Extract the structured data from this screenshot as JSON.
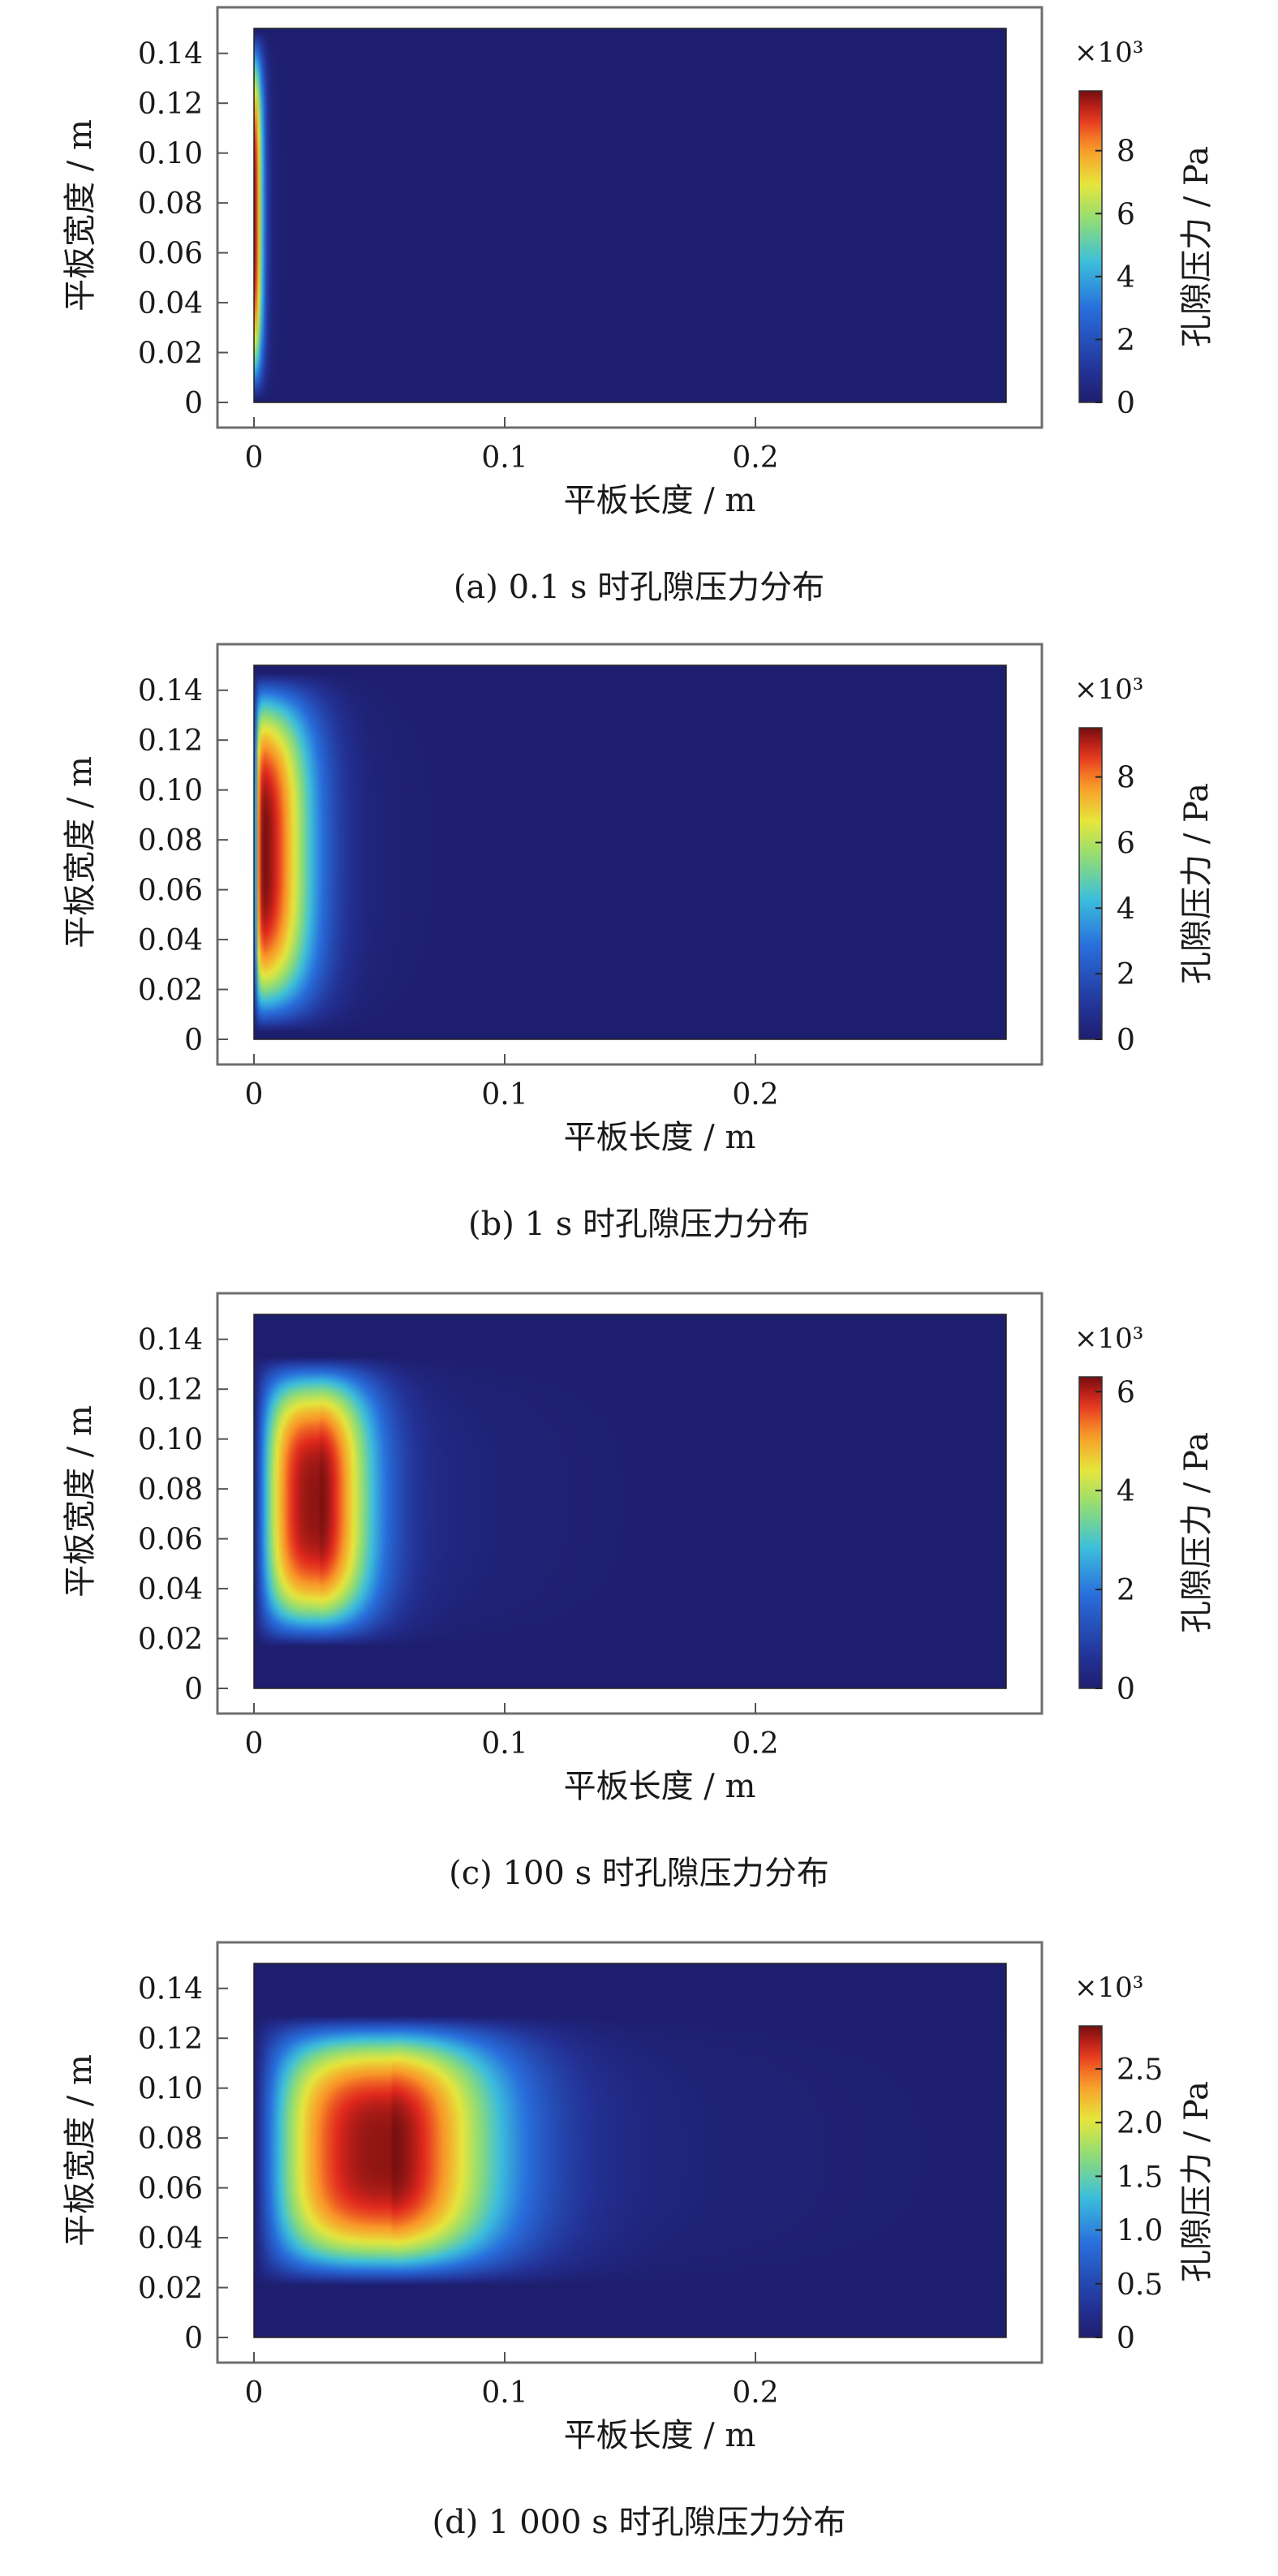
{
  "chart_data": [
    {
      "type": "heatmap",
      "xlabel": "平板长度 / m",
      "ylabel": "平板宽度 / m",
      "colorbar_label": "孔隙压力 / Pa",
      "colorbar_multiplier": "×10³",
      "xlim": [
        0,
        0.3
      ],
      "ylim": [
        0,
        0.15
      ],
      "x_ticks": [
        0,
        0.1,
        0.2
      ],
      "x_tick_labels": [
        "0",
        "0.1",
        "0.2"
      ],
      "y_ticks": [
        0,
        0.02,
        0.04,
        0.06,
        0.08,
        0.1,
        0.12,
        0.14
      ],
      "y_tick_labels": [
        "0",
        "0.02",
        "0.04",
        "0.06",
        "0.08",
        "0.10",
        "0.12",
        "0.14"
      ],
      "colorbar_range": [
        0,
        9.9
      ],
      "colorbar_ticks": [
        0,
        2,
        4,
        6,
        8
      ],
      "colorbar_tick_labels": [
        "0",
        "2",
        "4",
        "6",
        "8"
      ],
      "colormap": "jet",
      "peak_value": 9.9,
      "peak_location": [
        0,
        0.075
      ],
      "caption": "(a) 0.1 s 时孔隙压力分布"
    },
    {
      "type": "heatmap",
      "xlabel": "平板长度 / m",
      "ylabel": "平板宽度 / m",
      "colorbar_label": "孔隙压力 / Pa",
      "colorbar_multiplier": "×10³",
      "xlim": [
        0,
        0.3
      ],
      "ylim": [
        0,
        0.15
      ],
      "x_ticks": [
        0,
        0.1,
        0.2
      ],
      "x_tick_labels": [
        "0",
        "0.1",
        "0.2"
      ],
      "y_ticks": [
        0,
        0.02,
        0.04,
        0.06,
        0.08,
        0.1,
        0.12,
        0.14
      ],
      "y_tick_labels": [
        "0",
        "0.02",
        "0.04",
        "0.06",
        "0.08",
        "0.10",
        "0.12",
        "0.14"
      ],
      "colorbar_range": [
        0,
        9.5
      ],
      "colorbar_ticks": [
        0,
        2,
        4,
        6,
        8
      ],
      "colorbar_tick_labels": [
        "0",
        "2",
        "4",
        "6",
        "8"
      ],
      "colormap": "jet",
      "peak_value": 9.5,
      "peak_location": [
        0.002,
        0.075
      ],
      "caption": "(b) 1 s 时孔隙压力分布"
    },
    {
      "type": "heatmap",
      "xlabel": "平板长度 / m",
      "ylabel": "平板宽度 / m",
      "colorbar_label": "孔隙压力 / Pa",
      "colorbar_multiplier": "×10³",
      "xlim": [
        0,
        0.3
      ],
      "ylim": [
        0,
        0.15
      ],
      "x_ticks": [
        0,
        0.1,
        0.2
      ],
      "x_tick_labels": [
        "0",
        "0.1",
        "0.2"
      ],
      "y_ticks": [
        0,
        0.02,
        0.04,
        0.06,
        0.08,
        0.1,
        0.12,
        0.14
      ],
      "y_tick_labels": [
        "0",
        "0.02",
        "0.04",
        "0.06",
        "0.08",
        "0.10",
        "0.12",
        "0.14"
      ],
      "colorbar_range": [
        0,
        6.3
      ],
      "colorbar_ticks": [
        0,
        2,
        4,
        6
      ],
      "colorbar_tick_labels": [
        "0",
        "2",
        "4",
        "6"
      ],
      "colormap": "jet",
      "peak_value": 6.3,
      "peak_location": [
        0.026,
        0.075
      ],
      "caption": "(c) 100 s 时孔隙压力分布"
    },
    {
      "type": "heatmap",
      "xlabel": "平板长度 / m",
      "ylabel": "平板宽度 / m",
      "colorbar_label": "孔隙压力 / Pa",
      "colorbar_multiplier": "×10³",
      "xlim": [
        0,
        0.3
      ],
      "ylim": [
        0,
        0.15
      ],
      "x_ticks": [
        0,
        0.1,
        0.2
      ],
      "x_tick_labels": [
        "0",
        "0.1",
        "0.2"
      ],
      "y_ticks": [
        0,
        0.02,
        0.04,
        0.06,
        0.08,
        0.1,
        0.12,
        0.14
      ],
      "y_tick_labels": [
        "0",
        "0.02",
        "0.04",
        "0.06",
        "0.08",
        "0.10",
        "0.12",
        "0.14"
      ],
      "colorbar_range": [
        0,
        2.9
      ],
      "colorbar_ticks": [
        0,
        0.5,
        1.0,
        1.5,
        2.0,
        2.5
      ],
      "colorbar_tick_labels": [
        "0",
        "0.5",
        "1.0",
        "1.5",
        "2.0",
        "2.5"
      ],
      "colormap": "jet",
      "peak_value": 2.9,
      "peak_location": [
        0.055,
        0.075
      ],
      "caption": "(d) 1 000 s 时孔隙压力分布"
    }
  ]
}
